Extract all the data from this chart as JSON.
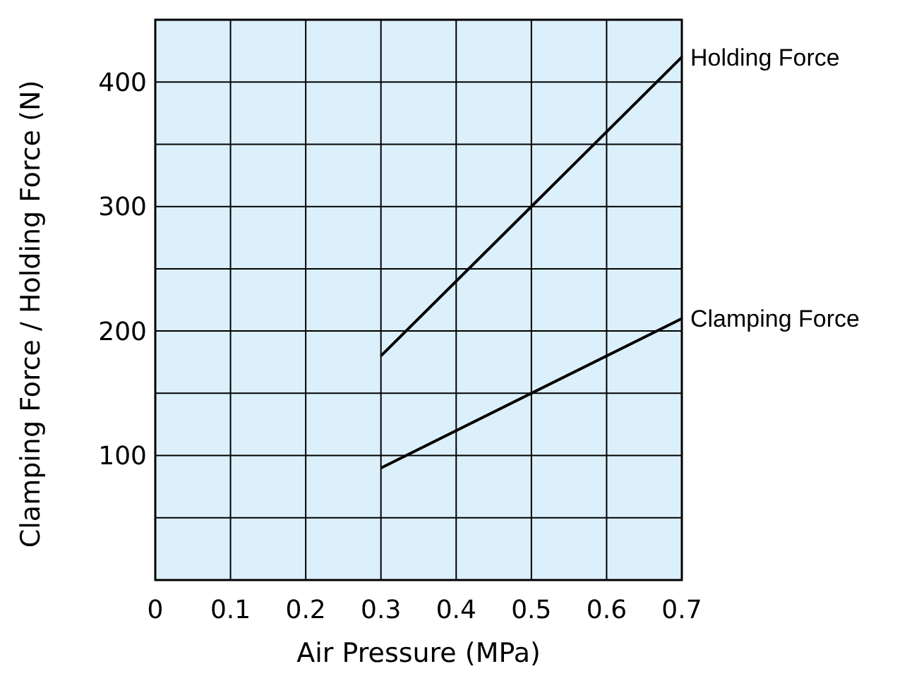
{
  "chart_data": {
    "type": "line",
    "xlabel": "Air Pressure (MPa)",
    "ylabel": "Clamping Force / Holding Force (N)",
    "xlim": [
      0,
      0.7
    ],
    "xticks": [
      0,
      0.1,
      0.2,
      0.3,
      0.4,
      0.5,
      0.6,
      0.7
    ],
    "ylim": [
      0,
      450
    ],
    "yticks": [
      {
        "value": 50,
        "label": null
      },
      100,
      {
        "value": 150,
        "label": null
      },
      200,
      {
        "value": 250,
        "label": null
      },
      300,
      {
        "value": 350,
        "label": null
      },
      400
    ],
    "grid": true,
    "marker": "none",
    "line_style": "solid",
    "x": [
      0.3,
      0.7
    ],
    "series": [
      {
        "name": "Holding Force",
        "color": "#000000",
        "values": [
          180,
          420
        ]
      },
      {
        "name": "Clamping Force",
        "color": "#000000",
        "values": [
          90,
          210
        ]
      }
    ]
  }
}
